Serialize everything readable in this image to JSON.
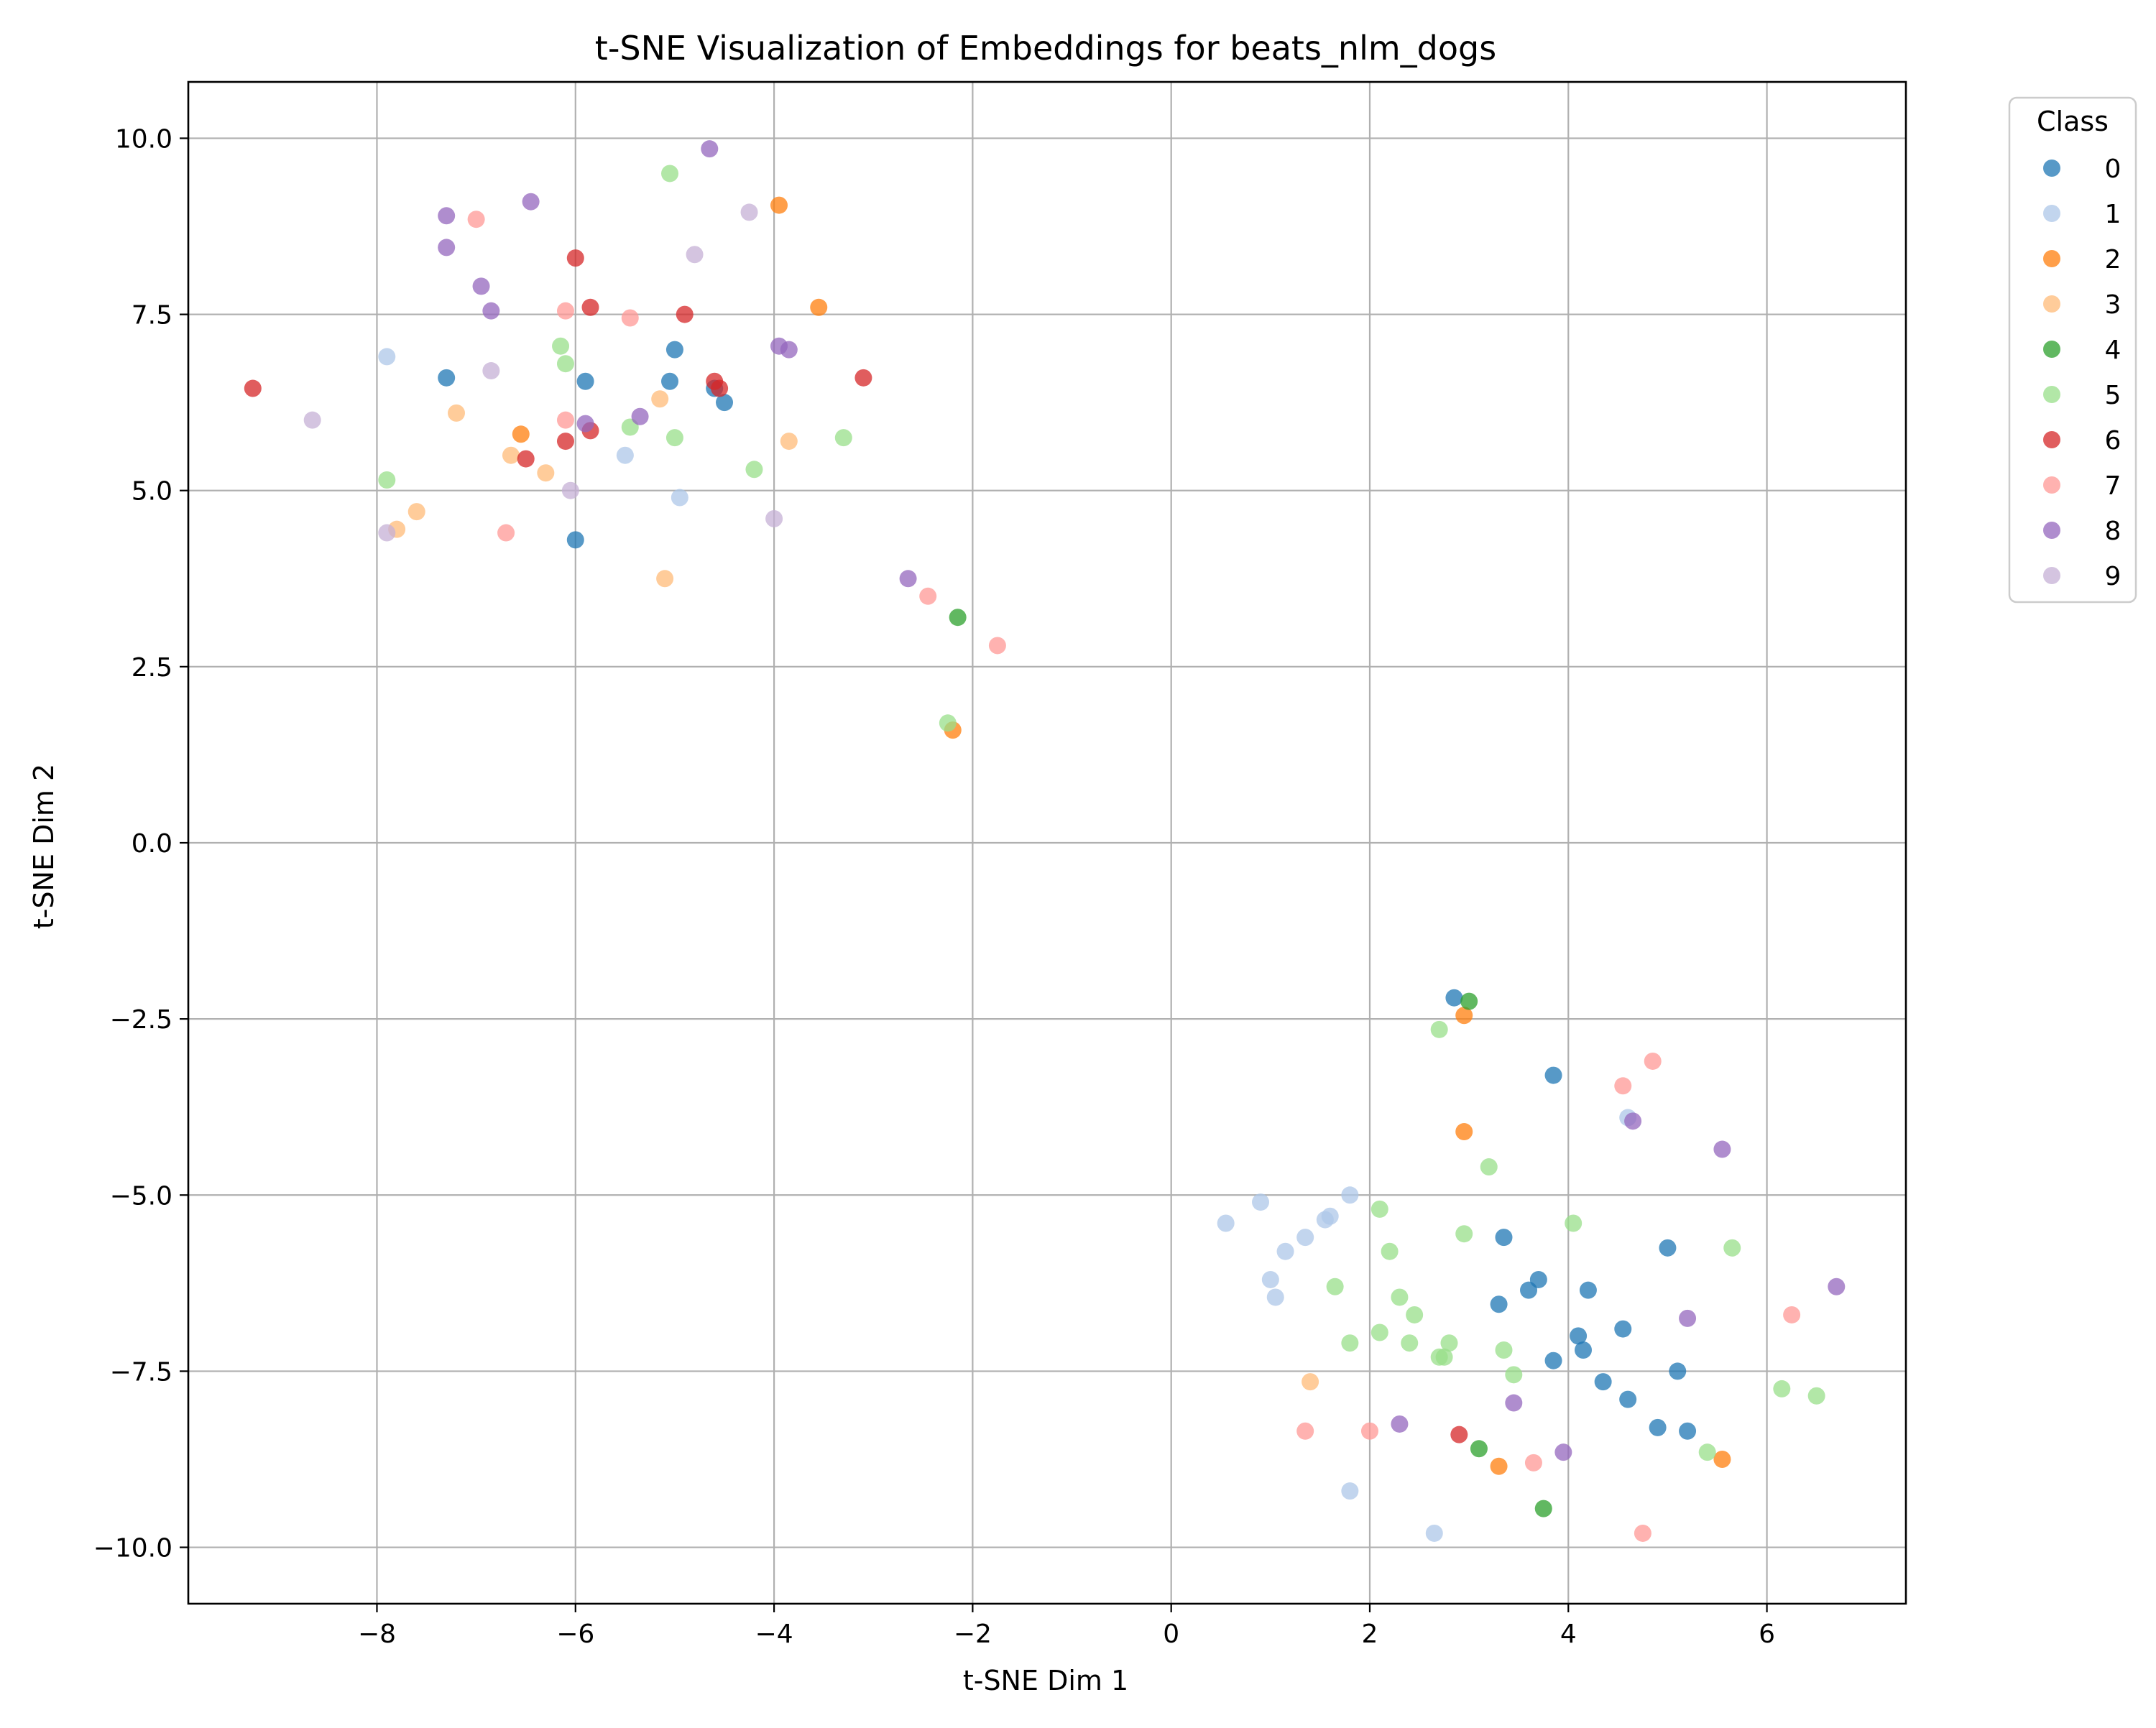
{
  "chart_data": {
    "type": "scatter",
    "title": "t-SNE Visualization of Embeddings for beats_nlm_dogs",
    "xlabel": "t-SNE Dim 1",
    "ylabel": "t-SNE Dim 2",
    "xlim": [
      -9.9,
      7.4
    ],
    "ylim": [
      -10.8,
      10.8
    ],
    "x_ticks": [
      -8,
      -6,
      -4,
      -2,
      0,
      2,
      4,
      6
    ],
    "y_ticks": [
      -10.0,
      -7.5,
      -5.0,
      -2.5,
      0.0,
      2.5,
      5.0,
      7.5,
      10.0
    ],
    "x_tick_labels": [
      "−8",
      "−6",
      "−4",
      "−2",
      "0",
      "2",
      "4",
      "6"
    ],
    "y_tick_labels": [
      "−10.0",
      "−7.5",
      "−5.0",
      "−2.5",
      "0.0",
      "2.5",
      "5.0",
      "7.5",
      "10.0"
    ],
    "grid": true,
    "legend": {
      "title": "Class",
      "position": "outside-top-right"
    },
    "series": [
      {
        "name": "0",
        "color": "#1f77b4",
        "points": [
          [
            -7.3,
            6.6
          ],
          [
            -5.9,
            6.55
          ],
          [
            -5.0,
            7.0
          ],
          [
            -5.05,
            6.55
          ],
          [
            -4.6,
            6.45
          ],
          [
            -4.5,
            6.25
          ],
          [
            -6.0,
            4.3
          ],
          [
            2.85,
            -2.2
          ],
          [
            3.85,
            -3.3
          ],
          [
            3.35,
            -5.6
          ],
          [
            3.7,
            -6.2
          ],
          [
            3.6,
            -6.35
          ],
          [
            3.3,
            -6.55
          ],
          [
            4.2,
            -6.35
          ],
          [
            5.0,
            -5.75
          ],
          [
            4.1,
            -7.0
          ],
          [
            4.15,
            -7.2
          ],
          [
            3.85,
            -7.35
          ],
          [
            4.55,
            -6.9
          ],
          [
            4.35,
            -7.65
          ],
          [
            5.1,
            -7.5
          ],
          [
            4.6,
            -7.9
          ],
          [
            4.9,
            -8.3
          ],
          [
            5.2,
            -8.35
          ]
        ]
      },
      {
        "name": "1",
        "color": "#aec7e8",
        "points": [
          [
            -7.9,
            6.9
          ],
          [
            -5.5,
            5.5
          ],
          [
            -4.95,
            4.9
          ],
          [
            0.55,
            -5.4
          ],
          [
            0.9,
            -5.1
          ],
          [
            1.15,
            -5.8
          ],
          [
            1.35,
            -5.6
          ],
          [
            1.55,
            -5.35
          ],
          [
            1.6,
            -5.3
          ],
          [
            1.0,
            -6.2
          ],
          [
            1.05,
            -6.45
          ],
          [
            1.8,
            -5.0
          ],
          [
            1.8,
            -9.2
          ],
          [
            2.65,
            -9.8
          ],
          [
            4.6,
            -3.9
          ]
        ]
      },
      {
        "name": "2",
        "color": "#ff7f0e",
        "points": [
          [
            -3.95,
            9.05
          ],
          [
            -3.55,
            7.6
          ],
          [
            -6.55,
            5.8
          ],
          [
            -2.2,
            1.6
          ],
          [
            2.95,
            -2.45
          ],
          [
            2.95,
            -4.1
          ],
          [
            3.3,
            -8.85
          ],
          [
            5.55,
            -8.75
          ]
        ]
      },
      {
        "name": "3",
        "color": "#ffbb78",
        "points": [
          [
            -7.2,
            6.1
          ],
          [
            -6.65,
            5.5
          ],
          [
            -6.3,
            5.25
          ],
          [
            -7.6,
            4.7
          ],
          [
            -7.8,
            4.45
          ],
          [
            -5.15,
            6.3
          ],
          [
            -3.85,
            5.7
          ],
          [
            -5.1,
            3.75
          ],
          [
            1.4,
            -7.65
          ]
        ]
      },
      {
        "name": "4",
        "color": "#2ca02c",
        "points": [
          [
            -2.15,
            3.2
          ],
          [
            3.0,
            -2.25
          ],
          [
            3.1,
            -8.6
          ],
          [
            3.75,
            -9.45
          ]
        ]
      },
      {
        "name": "5",
        "color": "#98df8a",
        "points": [
          [
            -5.05,
            9.5
          ],
          [
            -6.15,
            7.05
          ],
          [
            -6.1,
            6.8
          ],
          [
            -7.9,
            5.15
          ],
          [
            -5.45,
            5.9
          ],
          [
            -5.0,
            5.75
          ],
          [
            -4.2,
            5.3
          ],
          [
            -3.3,
            5.75
          ],
          [
            -2.25,
            1.7
          ],
          [
            2.7,
            -2.65
          ],
          [
            3.2,
            -4.6
          ],
          [
            2.1,
            -5.2
          ],
          [
            2.95,
            -5.55
          ],
          [
            4.05,
            -5.4
          ],
          [
            5.65,
            -5.75
          ],
          [
            2.2,
            -5.8
          ],
          [
            1.65,
            -6.3
          ],
          [
            2.3,
            -6.45
          ],
          [
            2.45,
            -6.7
          ],
          [
            2.1,
            -6.95
          ],
          [
            1.8,
            -7.1
          ],
          [
            2.4,
            -7.1
          ],
          [
            2.8,
            -7.1
          ],
          [
            2.7,
            -7.3
          ],
          [
            2.75,
            -7.3
          ],
          [
            3.35,
            -7.2
          ],
          [
            3.45,
            -7.55
          ],
          [
            6.15,
            -7.75
          ],
          [
            6.5,
            -7.85
          ],
          [
            5.4,
            -8.65
          ]
        ]
      },
      {
        "name": "6",
        "color": "#d62728",
        "points": [
          [
            -9.25,
            6.45
          ],
          [
            -6.0,
            8.3
          ],
          [
            -5.85,
            7.6
          ],
          [
            -4.9,
            7.5
          ],
          [
            -4.6,
            6.55
          ],
          [
            -4.55,
            6.45
          ],
          [
            -3.1,
            6.6
          ],
          [
            -6.5,
            5.45
          ],
          [
            -6.1,
            5.7
          ],
          [
            -5.85,
            5.85
          ],
          [
            2.9,
            -8.4
          ]
        ]
      },
      {
        "name": "7",
        "color": "#ff9896",
        "points": [
          [
            -7.0,
            8.85
          ],
          [
            -6.1,
            7.55
          ],
          [
            -5.45,
            7.45
          ],
          [
            -6.1,
            6.0
          ],
          [
            -6.7,
            4.4
          ],
          [
            -2.45,
            3.5
          ],
          [
            -1.75,
            2.8
          ],
          [
            4.55,
            -3.45
          ],
          [
            4.85,
            -3.1
          ],
          [
            6.25,
            -6.7
          ],
          [
            1.35,
            -8.35
          ],
          [
            2.0,
            -8.35
          ],
          [
            3.65,
            -8.8
          ],
          [
            4.75,
            -9.8
          ]
        ]
      },
      {
        "name": "8",
        "color": "#9467bd",
        "points": [
          [
            -4.65,
            9.85
          ],
          [
            -6.45,
            9.1
          ],
          [
            -7.3,
            8.9
          ],
          [
            -7.3,
            8.45
          ],
          [
            -6.95,
            7.9
          ],
          [
            -6.85,
            7.55
          ],
          [
            -3.95,
            7.05
          ],
          [
            -3.85,
            7.0
          ],
          [
            -5.9,
            5.95
          ],
          [
            -5.35,
            6.05
          ],
          [
            -2.65,
            3.75
          ],
          [
            4.65,
            -3.95
          ],
          [
            5.55,
            -4.35
          ],
          [
            5.2,
            -6.75
          ],
          [
            6.7,
            -6.3
          ],
          [
            2.3,
            -8.25
          ],
          [
            3.45,
            -7.95
          ],
          [
            3.95,
            -8.65
          ]
        ]
      },
      {
        "name": "9",
        "color": "#c5b0d5",
        "points": [
          [
            -4.25,
            8.95
          ],
          [
            -4.8,
            8.35
          ],
          [
            -6.85,
            6.7
          ],
          [
            -8.65,
            6.0
          ],
          [
            -6.05,
            5.0
          ],
          [
            -7.9,
            4.4
          ],
          [
            -4.0,
            4.6
          ]
        ]
      }
    ]
  }
}
